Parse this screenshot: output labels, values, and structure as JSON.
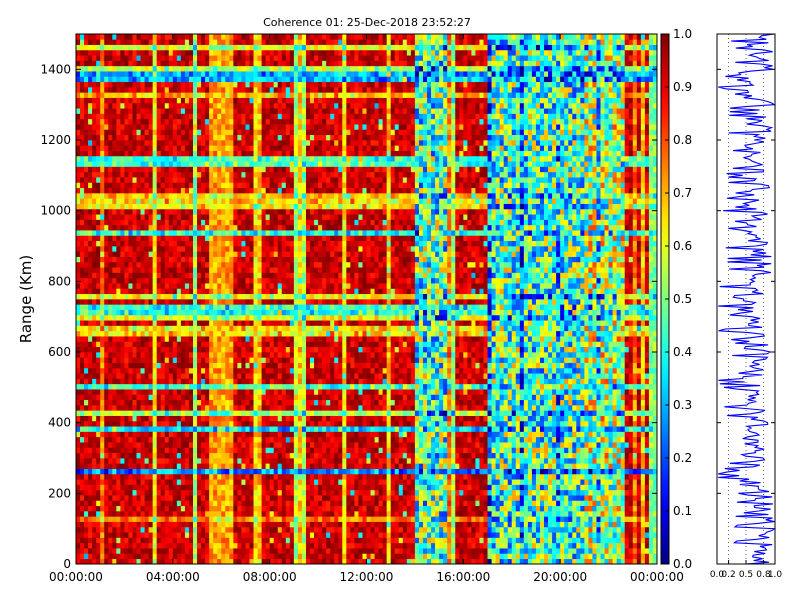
{
  "chart_data": [
    {
      "type": "heatmap",
      "title": "Coherence 01: 25-Dec-2018 23:52:27",
      "xlabel": "",
      "ylabel": "Range (Km)",
      "x_tick_labels": [
        "00:00:00",
        "04:00:00",
        "08:00:00",
        "12:00:00",
        "16:00:00",
        "20:00:00",
        "00:00:00"
      ],
      "x_range": [
        "00:00:00",
        "24:00:00"
      ],
      "y_ticks": [
        0,
        200,
        400,
        600,
        800,
        1000,
        1200,
        1400
      ],
      "ylim": [
        0,
        1500
      ],
      "colormap": "jet",
      "colorbar": {
        "min": 0.0,
        "max": 1.0,
        "ticks": [
          "0.0",
          "0.1",
          "0.2",
          "0.3",
          "0.4",
          "0.5",
          "0.6",
          "0.7",
          "0.8",
          "0.9",
          "1.0"
        ]
      },
      "grid": false,
      "time_bins": 144,
      "range_bins": 100,
      "background_coherence": 0.93,
      "low_coherence_time_intervals": [
        {
          "start": "05:30:00",
          "end": "06:30:00",
          "level": 0.72
        },
        {
          "start": "14:00:00",
          "end": "15:20:00",
          "level": 0.45
        },
        {
          "start": "17:00:00",
          "end": "21:00:00",
          "level": 0.45
        },
        {
          "start": "21:00:00",
          "end": "22:40:00",
          "level": 0.55
        }
      ],
      "low_coherence_ranges_km": [
        {
          "range": 260,
          "level": 0.25
        },
        {
          "range": 380,
          "level": 0.35
        },
        {
          "range": 500,
          "level": 0.45
        },
        {
          "range": 660,
          "level": 0.65
        },
        {
          "range": 720,
          "level": 0.4
        },
        {
          "range": 940,
          "level": 0.4
        },
        {
          "range": 1020,
          "level": 0.65
        },
        {
          "range": 1140,
          "level": 0.45
        },
        {
          "range": 1330,
          "level": 0.7
        },
        {
          "range": 1380,
          "level": 0.3
        }
      ]
    },
    {
      "type": "line",
      "title": "",
      "xlabel": "",
      "ylabel": "",
      "x_tick_labels": [
        "0.0",
        "0.2",
        "0.5",
        "0.8",
        "1.0"
      ],
      "xlim": [
        0.0,
        1.0
      ],
      "ylim": [
        0,
        1500
      ],
      "series": [
        {
          "color": "#0000ff",
          "profile": "mean coherence vs range",
          "range_km": [
            0,
            100,
            200,
            260,
            300,
            380,
            400,
            500,
            600,
            660,
            700,
            720,
            800,
            900,
            940,
            1000,
            1020,
            1100,
            1140,
            1200,
            1300,
            1330,
            1380,
            1400,
            1500
          ],
          "values": [
            0.7,
            0.78,
            0.72,
            0.35,
            0.75,
            0.45,
            0.7,
            0.5,
            0.72,
            0.6,
            0.7,
            0.45,
            0.68,
            0.72,
            0.45,
            0.7,
            0.55,
            0.75,
            0.5,
            0.72,
            0.78,
            0.62,
            0.4,
            0.75,
            0.8
          ]
        }
      ]
    }
  ]
}
